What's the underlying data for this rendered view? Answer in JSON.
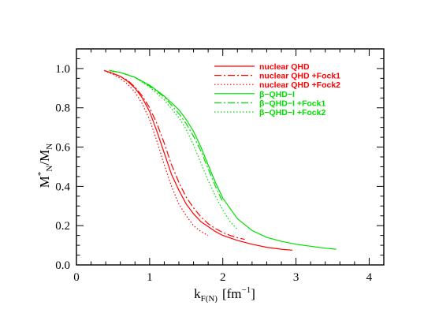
{
  "chart_data": {
    "type": "line",
    "xlabel": "k",
    "xlabel_sub": "F(N)",
    "xlabel_unit": "[fm",
    "xlabel_unit_exp": "−1",
    "xlabel_unit_end": "]",
    "ylabel": "M",
    "ylabel_sup": "*",
    "ylabel_sub": "N",
    "ylabel_div": "/M",
    "ylabel_div_sub": "N",
    "xlim": [
      0,
      4.2
    ],
    "ylim": [
      0,
      1.1
    ],
    "x_ticks": [
      0,
      1,
      2,
      3,
      4
    ],
    "x_tick_labels": [
      "0",
      "1",
      "2",
      "3",
      "4"
    ],
    "y_ticks": [
      0.0,
      0.2,
      0.4,
      0.6,
      0.8,
      1.0
    ],
    "y_tick_labels": [
      "0.0",
      "0.2",
      "0.4",
      "0.6",
      "0.8",
      "1.0"
    ],
    "legend_position": "top-right",
    "series": [
      {
        "name": "nuclear QHD",
        "color": "#ff0000",
        "dash": "solid",
        "x": [
          0.38,
          0.5,
          0.6,
          0.7,
          0.8,
          0.9,
          1.0,
          1.1,
          1.2,
          1.3,
          1.4,
          1.5,
          1.6,
          1.7,
          1.8,
          1.9,
          2.0,
          2.2,
          2.4,
          2.6,
          2.8,
          2.95
        ],
        "y": [
          0.99,
          0.975,
          0.96,
          0.935,
          0.9,
          0.85,
          0.78,
          0.68,
          0.57,
          0.46,
          0.38,
          0.31,
          0.26,
          0.22,
          0.195,
          0.17,
          0.15,
          0.125,
          0.105,
          0.09,
          0.08,
          0.075
        ]
      },
      {
        "name": "nuclear QHD +Fock1",
        "color": "#ff0000",
        "dash": "dashdot",
        "x": [
          0.38,
          0.5,
          0.6,
          0.7,
          0.8,
          0.9,
          1.0,
          1.1,
          1.2,
          1.3,
          1.4,
          1.5,
          1.6,
          1.7,
          1.8,
          1.9,
          2.0,
          2.1,
          2.2,
          2.3
        ],
        "y": [
          0.99,
          0.975,
          0.96,
          0.94,
          0.905,
          0.86,
          0.8,
          0.72,
          0.62,
          0.51,
          0.42,
          0.345,
          0.29,
          0.245,
          0.21,
          0.185,
          0.165,
          0.15,
          0.138,
          0.13
        ]
      },
      {
        "name": "nuclear QHD +Fock2",
        "color": "#ff0000",
        "dash": "dotted",
        "x": [
          0.38,
          0.5,
          0.6,
          0.7,
          0.8,
          0.9,
          1.0,
          1.1,
          1.2,
          1.3,
          1.4,
          1.5,
          1.6,
          1.7,
          1.8
        ],
        "y": [
          0.99,
          0.97,
          0.95,
          0.92,
          0.88,
          0.82,
          0.74,
          0.63,
          0.51,
          0.4,
          0.31,
          0.25,
          0.2,
          0.17,
          0.15
        ]
      },
      {
        "name": "β−QHD−I",
        "color": "#00dd00",
        "dash": "solid",
        "x": [
          0.45,
          0.6,
          0.8,
          1.0,
          1.2,
          1.4,
          1.5,
          1.6,
          1.7,
          1.8,
          1.9,
          2.0,
          2.2,
          2.4,
          2.6,
          2.8,
          3.0,
          3.2,
          3.4,
          3.55
        ],
        "y": [
          0.99,
          0.98,
          0.955,
          0.915,
          0.86,
          0.79,
          0.74,
          0.68,
          0.6,
          0.51,
          0.42,
          0.34,
          0.235,
          0.175,
          0.14,
          0.12,
          0.105,
          0.095,
          0.085,
          0.08
        ]
      },
      {
        "name": "β−QHD−I  +Fock1",
        "color": "#00dd00",
        "dash": "dashdot",
        "x": [
          0.45,
          0.6,
          0.8,
          1.0,
          1.2,
          1.4,
          1.5,
          1.6,
          1.7,
          1.8,
          1.9,
          2.0
        ],
        "y": [
          0.99,
          0.98,
          0.955,
          0.91,
          0.855,
          0.77,
          0.72,
          0.655,
          0.58,
          0.49,
          0.4,
          0.32
        ]
      },
      {
        "name": "β−QHD−I  +Fock2",
        "color": "#00dd00",
        "dash": "dotted",
        "x": [
          0.45,
          0.6,
          0.8,
          1.0,
          1.2,
          1.4,
          1.5,
          1.6,
          1.7,
          1.8,
          1.9,
          2.0,
          2.1,
          2.2
        ],
        "y": [
          0.99,
          0.98,
          0.955,
          0.905,
          0.84,
          0.75,
          0.69,
          0.61,
          0.52,
          0.43,
          0.35,
          0.28,
          0.22,
          0.18
        ]
      }
    ]
  }
}
